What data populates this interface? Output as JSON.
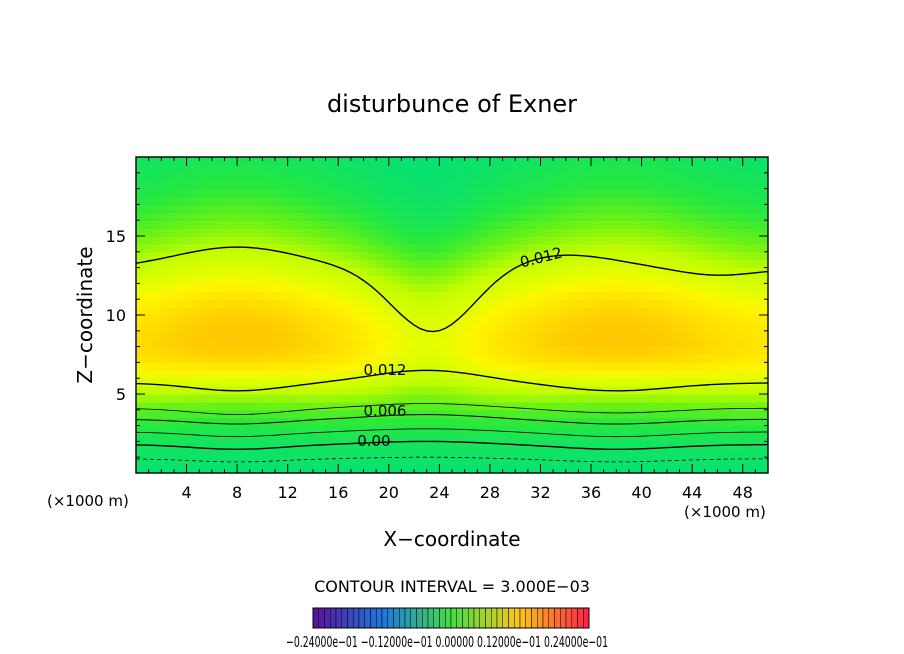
{
  "chart_data": {
    "type": "heatmap",
    "title": "disturbunce of Exner",
    "xlabel": "X−coordinate",
    "ylabel": "Z−coordinate",
    "x_unit_left": "(×1000 m)",
    "x_unit_right": "(×1000 m)",
    "xlim": [
      0,
      50
    ],
    "ylim": [
      0,
      20
    ],
    "x_ticks": [
      4,
      8,
      12,
      16,
      20,
      24,
      28,
      32,
      36,
      40,
      44,
      48
    ],
    "x_tick_labels": [
      "4",
      "8",
      "12",
      "16",
      "20",
      "24",
      "28",
      "32",
      "36",
      "40",
      "44",
      "48"
    ],
    "y_ticks": [
      5,
      10,
      15
    ],
    "y_tick_labels": [
      "5",
      "10",
      "15"
    ],
    "contour_interval_text": "CONTOUR INTERVAL = 3.000E−03",
    "contour_interval": 0.003,
    "contour_labels": [
      {
        "text": "0.012",
        "x": 30.5,
        "y": 13.0
      },
      {
        "text": "0.012",
        "x": 18.0,
        "y": 6.2
      },
      {
        "text": "0.006",
        "x": 18.0,
        "y": 3.6
      },
      {
        "text": "0.00",
        "x": 17.5,
        "y": 1.7
      }
    ],
    "colorbar_labels": "−0.24000e−01   −0.12000e−01   0.00000   0.12000e−01   0.24000e−01",
    "colorbar_range": [
      -0.024,
      0.024
    ],
    "grid": false,
    "legend": "none",
    "colors": {
      "low": "#00e070",
      "mid": "#ccff00",
      "high": "#ffcc00",
      "contour": "#000000"
    }
  }
}
